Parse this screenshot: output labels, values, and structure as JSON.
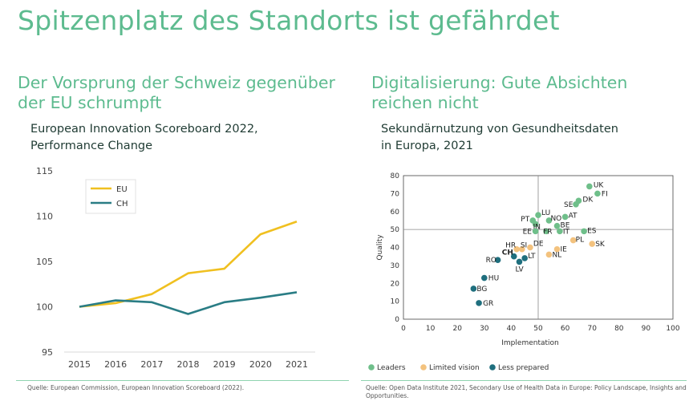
{
  "page": {
    "title": "Spitzenplatz des Standorts ist gefährdet",
    "left_subtitle": "Der Vorsprung der Schweiz gegenüber der EU schrumpft",
    "right_subtitle": "Digitalisierung: Gute Absichten reichen nicht",
    "left_source": "Quelle: European Commission, European Innovation Scoreboard (2022).",
    "right_source": "Quelle: Open Data Institute 2021, Secondary Use of Health Data in Europe: Policy Landscape, Insights and Opportunities."
  },
  "chart_data": [
    {
      "type": "line",
      "title": "European Innovation Scoreboard 2022, Performance Change",
      "x": [
        "2015",
        "2016",
        "2017",
        "2018",
        "2019",
        "2020",
        "2021"
      ],
      "series": [
        {
          "name": "EU",
          "color": "#f0c020",
          "values": [
            100,
            100.4,
            101.4,
            103.7,
            104.2,
            108.0,
            109.4
          ]
        },
        {
          "name": "CH",
          "color": "#2a7d85",
          "values": [
            100,
            100.7,
            100.5,
            99.2,
            100.5,
            101.0,
            101.6
          ]
        }
      ],
      "ylim": [
        95,
        115
      ],
      "yticks": [
        "95",
        "100",
        "105",
        "110",
        "115"
      ],
      "legend": "top-left",
      "grid": false
    },
    {
      "type": "scatter",
      "title": "Sekundärnutzung von Gesundheitsdaten in Europa, 2021",
      "xlabel": "Implementation",
      "ylabel": "Quality",
      "xlim": [
        0,
        100
      ],
      "ylim": [
        0,
        80
      ],
      "xticks": [
        "0",
        "10",
        "20",
        "30",
        "40",
        "50",
        "60",
        "70",
        "80",
        "90",
        "100"
      ],
      "yticks": [
        "0",
        "10",
        "20",
        "30",
        "40",
        "50",
        "60",
        "70",
        "80"
      ],
      "reference_lines": {
        "x": 50,
        "y": 50
      },
      "categories": [
        {
          "name": "Leaders",
          "color": "#6fbf8a"
        },
        {
          "name": "Limited vision",
          "color": "#f3c27e"
        },
        {
          "name": "Less prepared",
          "color": "#1f6f7e"
        }
      ],
      "legend": "bottom",
      "points": [
        {
          "label": "UK",
          "x": 69,
          "y": 74,
          "category": "Leaders"
        },
        {
          "label": "FI",
          "x": 72,
          "y": 70,
          "category": "Leaders"
        },
        {
          "label": "DK",
          "x": 65,
          "y": 66,
          "category": "Leaders"
        },
        {
          "label": "SE",
          "x": 64,
          "y": 64,
          "category": "Leaders"
        },
        {
          "label": "LU",
          "x": 50,
          "y": 58,
          "category": "Leaders"
        },
        {
          "label": "AT",
          "x": 60,
          "y": 57,
          "category": "Leaders"
        },
        {
          "label": "PT",
          "x": 48,
          "y": 55,
          "category": "Leaders"
        },
        {
          "label": "IN",
          "x": 49,
          "y": 53,
          "category": "Leaders"
        },
        {
          "label": "NO",
          "x": 54,
          "y": 55,
          "category": "Leaders"
        },
        {
          "label": "BE",
          "x": 57,
          "y": 52,
          "category": "Leaders"
        },
        {
          "label": "EE",
          "x": 49,
          "y": 49,
          "category": "Leaders"
        },
        {
          "label": "FR",
          "x": 53,
          "y": 49,
          "category": "Leaders"
        },
        {
          "label": "IT",
          "x": 58,
          "y": 49,
          "category": "Leaders"
        },
        {
          "label": "ES",
          "x": 67,
          "y": 49,
          "category": "Leaders"
        },
        {
          "label": "PL",
          "x": 63,
          "y": 44,
          "category": "Limited vision"
        },
        {
          "label": "SK",
          "x": 70,
          "y": 42,
          "category": "Limited vision"
        },
        {
          "label": "HR",
          "x": 42,
          "y": 39,
          "category": "Limited vision"
        },
        {
          "label": "SI",
          "x": 44,
          "y": 39,
          "category": "Limited vision"
        },
        {
          "label": "DE",
          "x": 47,
          "y": 40,
          "category": "Limited vision"
        },
        {
          "label": "IE",
          "x": 57,
          "y": 39,
          "category": "Limited vision"
        },
        {
          "label": "NL",
          "x": 54,
          "y": 36,
          "category": "Limited vision"
        },
        {
          "label": "CH",
          "x": 41,
          "y": 35,
          "category": "Less prepared",
          "highlight": true
        },
        {
          "label": "LT",
          "x": 45,
          "y": 34,
          "category": "Less prepared"
        },
        {
          "label": "RO",
          "x": 35,
          "y": 33,
          "category": "Less prepared"
        },
        {
          "label": "LV",
          "x": 43,
          "y": 32,
          "category": "Less prepared"
        },
        {
          "label": "HU",
          "x": 30,
          "y": 23,
          "category": "Less prepared"
        },
        {
          "label": "BG",
          "x": 26,
          "y": 17,
          "category": "Less prepared"
        },
        {
          "label": "GR",
          "x": 28,
          "y": 9,
          "category": "Less prepared"
        }
      ]
    }
  ]
}
